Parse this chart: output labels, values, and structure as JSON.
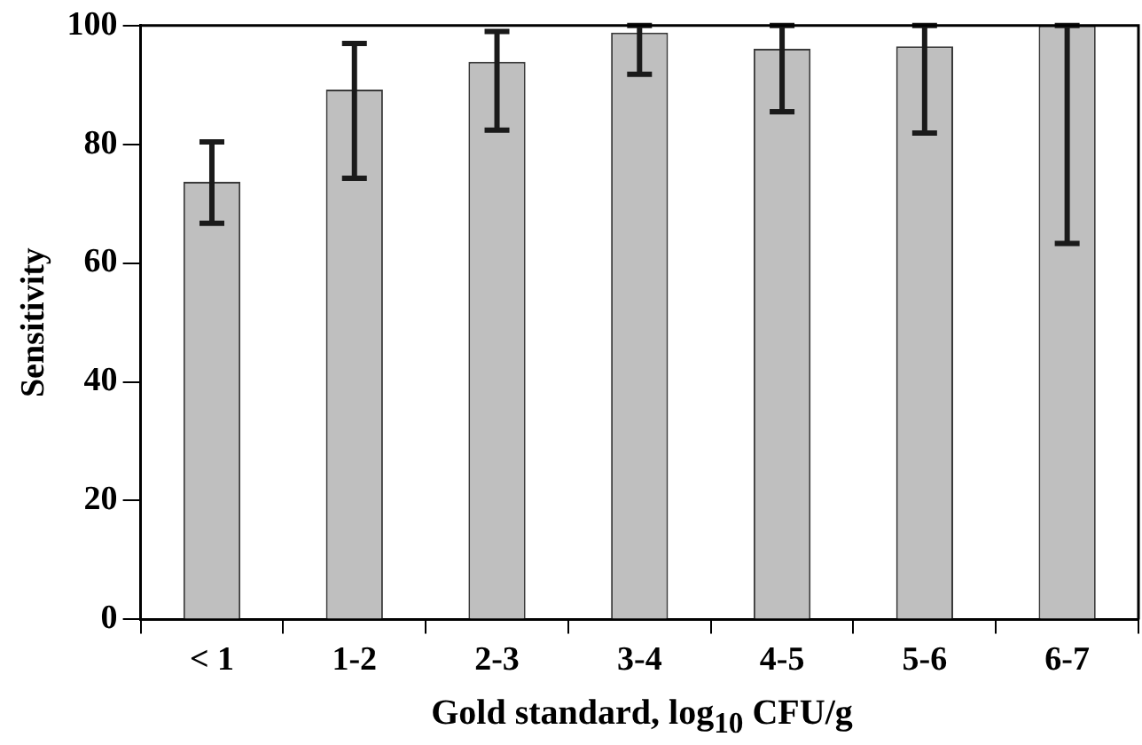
{
  "chart_data": {
    "type": "bar",
    "xlabel": "Gold standard, log$_{10}$ CFU/g",
    "ylabel": "Sensitivity",
    "categories": [
      "< 1",
      "1-2",
      "2-3",
      "3-4",
      "4-5",
      "5-6",
      "6-7"
    ],
    "values": [
      73.7,
      89.2,
      93.9,
      98.8,
      96.1,
      96.5,
      100
    ],
    "errors": [
      [
        66.7,
        80.4
      ],
      [
        74.3,
        97
      ],
      [
        82.4,
        99
      ],
      [
        91.8,
        100
      ],
      [
        85.5,
        100
      ],
      [
        81.9,
        100
      ],
      [
        63.3,
        100
      ]
    ],
    "color": "#bfbfbf",
    "ylim": [
      0,
      100
    ],
    "yticks": [
      0,
      20,
      40,
      60,
      80,
      100
    ],
    "grid": false,
    "legend": false
  }
}
